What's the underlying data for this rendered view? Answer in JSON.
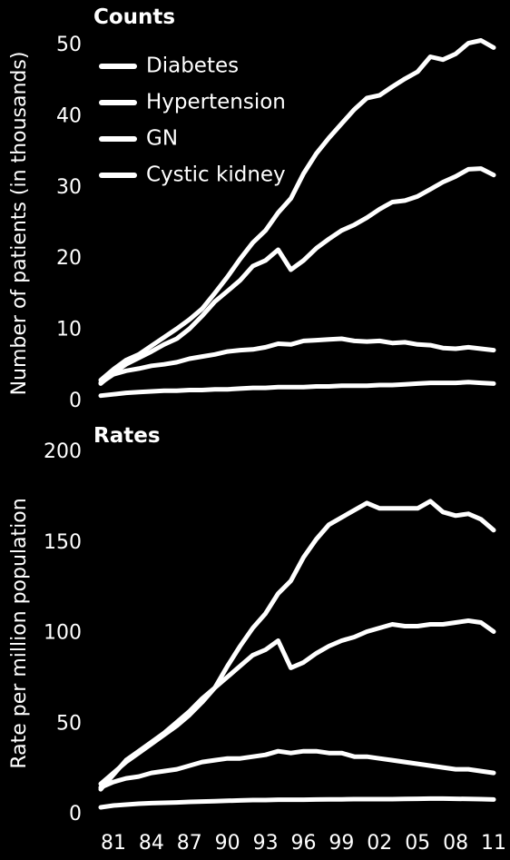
{
  "chart_data": [
    {
      "type": "line",
      "title": "Counts",
      "ylabel": "Number of patients (in thousands)",
      "ylim": [
        0,
        50
      ],
      "yticks": [
        0,
        10,
        20,
        30,
        40,
        50
      ],
      "x": [
        1980,
        1981,
        1982,
        1983,
        1984,
        1985,
        1986,
        1987,
        1988,
        1989,
        1990,
        1991,
        1992,
        1993,
        1994,
        1995,
        1996,
        1997,
        1998,
        1999,
        2000,
        2001,
        2002,
        2003,
        2004,
        2005,
        2006,
        2007,
        2008,
        2009,
        2010,
        2011
      ],
      "legend": "top-left",
      "series": [
        {
          "name": "Diabetes",
          "values": [
            3.0,
            4.5,
            5.8,
            6.6,
            7.8,
            9.0,
            10.2,
            11.5,
            13.0,
            15.2,
            17.5,
            20.0,
            22.3,
            24.0,
            26.5,
            28.5,
            32.0,
            34.8,
            37.0,
            39.0,
            41.0,
            42.6,
            43.0,
            44.2,
            45.3,
            46.3,
            48.4,
            48.0,
            48.8,
            50.3,
            50.7,
            49.7
          ]
        },
        {
          "name": "Hypertension",
          "values": [
            2.5,
            4.0,
            5.2,
            6.1,
            7.0,
            8.0,
            8.8,
            10.2,
            12.0,
            14.0,
            15.5,
            17.0,
            19.0,
            19.8,
            21.3,
            18.5,
            19.8,
            21.5,
            22.8,
            24.0,
            24.8,
            25.8,
            27.0,
            28.0,
            28.2,
            28.8,
            29.8,
            30.8,
            31.6,
            32.6,
            32.7,
            31.8
          ]
        },
        {
          "name": "GN",
          "values": [
            2.6,
            3.8,
            4.3,
            4.6,
            5.0,
            5.2,
            5.5,
            6.0,
            6.3,
            6.6,
            7.0,
            7.2,
            7.3,
            7.6,
            8.1,
            8.0,
            8.5,
            8.6,
            8.7,
            8.8,
            8.5,
            8.4,
            8.5,
            8.2,
            8.3,
            8.0,
            7.9,
            7.5,
            7.4,
            7.6,
            7.4,
            7.2
          ]
        },
        {
          "name": "Cystic kidney",
          "values": [
            0.8,
            1.0,
            1.2,
            1.3,
            1.4,
            1.5,
            1.5,
            1.6,
            1.6,
            1.7,
            1.7,
            1.8,
            1.9,
            1.9,
            2.0,
            2.0,
            2.0,
            2.1,
            2.1,
            2.2,
            2.2,
            2.2,
            2.3,
            2.3,
            2.4,
            2.5,
            2.6,
            2.6,
            2.6,
            2.7,
            2.6,
            2.5
          ]
        }
      ]
    },
    {
      "type": "line",
      "title": "Rates",
      "ylabel": "Rate per million population",
      "ylim": [
        0,
        200
      ],
      "yticks": [
        0,
        50,
        100,
        150,
        200
      ],
      "x": [
        1980,
        1981,
        1982,
        1983,
        1984,
        1985,
        1986,
        1987,
        1988,
        1989,
        1990,
        1991,
        1992,
        1993,
        1994,
        1995,
        1996,
        1997,
        1998,
        1999,
        2000,
        2001,
        2002,
        2003,
        2004,
        2005,
        2006,
        2007,
        2008,
        2009,
        2010,
        2011
      ],
      "xticks": [
        "81",
        "84",
        "87",
        "90",
        "93",
        "96",
        "99",
        "02",
        "05",
        "08",
        "11"
      ],
      "series": [
        {
          "name": "Diabetes",
          "values": [
            17,
            23,
            29,
            34,
            39,
            44,
            49,
            55,
            62,
            70,
            82,
            93,
            103,
            111,
            122,
            129,
            142,
            152,
            160,
            164,
            168,
            172,
            169,
            169,
            169,
            169,
            173,
            167,
            165,
            166,
            163,
            157
          ]
        },
        {
          "name": "Hypertension",
          "values": [
            14,
            22,
            30,
            35,
            40,
            45,
            51,
            57,
            64,
            70,
            76,
            82,
            88,
            91,
            96,
            81,
            84,
            89,
            93,
            96,
            98,
            101,
            103,
            105,
            104,
            104,
            105,
            105,
            106,
            107,
            106,
            101
          ]
        },
        {
          "name": "GN",
          "values": [
            15,
            18,
            20,
            21,
            23,
            24,
            25,
            27,
            29,
            30,
            31,
            31,
            32,
            33,
            35,
            34,
            35,
            35,
            34,
            34,
            32,
            32,
            31,
            30,
            29,
            28,
            27,
            26,
            25,
            25,
            24,
            23
          ]
        },
        {
          "name": "Cystic kidney",
          "values": [
            4,
            5,
            5.5,
            6,
            6.3,
            6.5,
            6.7,
            7,
            7.2,
            7.4,
            7.6,
            7.8,
            8,
            8,
            8.2,
            8.2,
            8.2,
            8.3,
            8.4,
            8.4,
            8.5,
            8.5,
            8.5,
            8.5,
            8.6,
            8.7,
            8.8,
            8.8,
            8.7,
            8.6,
            8.5,
            8.3
          ]
        }
      ]
    }
  ]
}
